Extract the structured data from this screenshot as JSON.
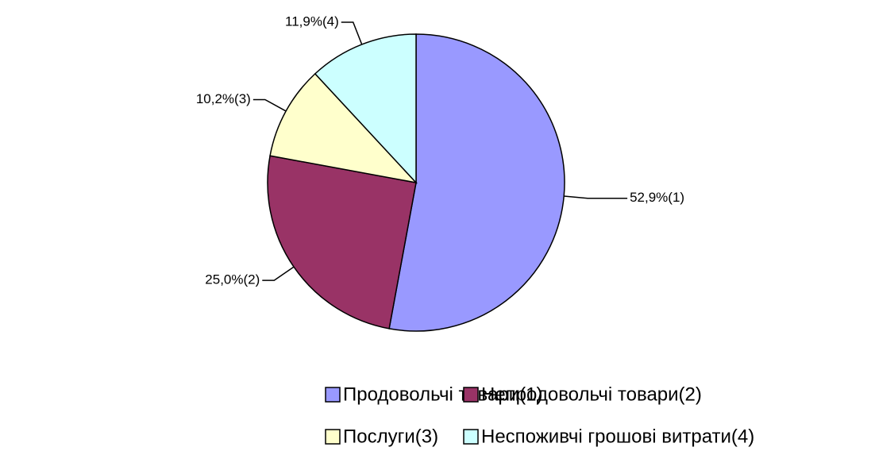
{
  "chart_data": {
    "type": "pie",
    "categories": [
      "Продовольчі товари(1)",
      "Непродовольчі товари(2)",
      "Послуги(3)",
      "Неспоживчі грошові витрати(4)"
    ],
    "values": [
      52.9,
      25.0,
      10.2,
      11.9
    ],
    "value_labels": [
      "52,9%(1)",
      "25,0%(2)",
      "10,2%(3)",
      "11,9%(4)"
    ],
    "colors": [
      "#9999ff",
      "#993366",
      "#ffffcc",
      "#ccffff"
    ],
    "legend": "bottom"
  }
}
